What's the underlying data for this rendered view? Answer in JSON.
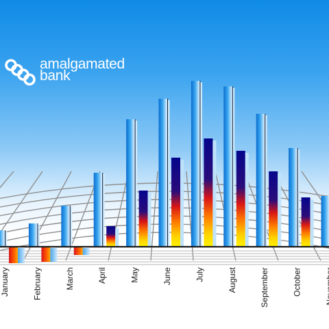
{
  "logo": {
    "line1": "amalgamated",
    "line2": "bank",
    "icon": "linked-rings-logo"
  },
  "colors": {
    "sky_top": "#0f8be6",
    "bar_blue": "#2f9be8",
    "bar_navy": "#0a0a8a",
    "heat_red": "#e0201a",
    "heat_orange": "#ff8a00",
    "heat_yellow": "#ffea00",
    "grid": "#8f8f8f"
  },
  "chart_data": {
    "type": "bar",
    "categories": [
      "January",
      "February",
      "March",
      "April",
      "May",
      "June",
      "July",
      "August",
      "September",
      "October",
      "November"
    ],
    "series": [
      {
        "values": [
          12,
          17,
          30,
          54,
          93,
          108,
          121,
          117,
          97,
          72,
          37
        ]
      },
      {
        "values": [
          -12,
          -11,
          -6,
          15,
          41,
          65,
          79,
          70,
          55,
          36,
          28
        ]
      }
    ],
    "title": "",
    "xlabel": "",
    "ylabel": "",
    "grid": true
  }
}
